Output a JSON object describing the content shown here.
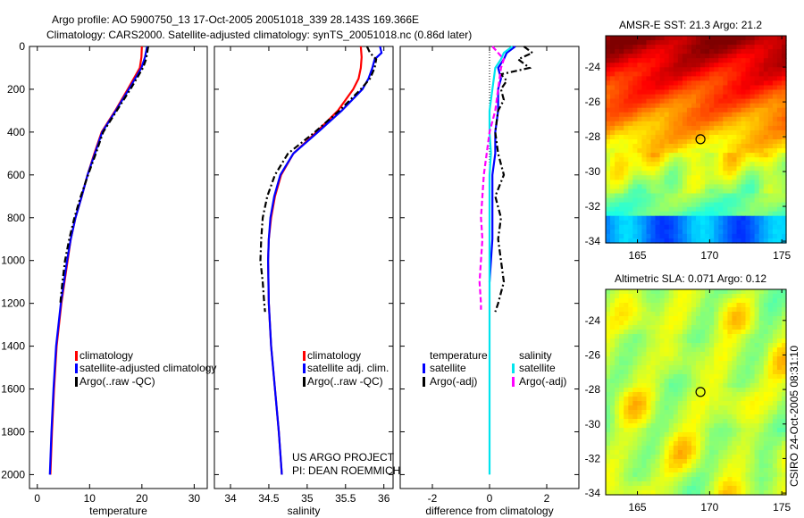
{
  "title_line1": "Argo profile: AO 5900750_13 17-Oct-2005 20051018_339 28.143S 169.366E",
  "title_line2": "Climatology: CARS2000. Satellite-adjusted climatology: synTS_20051018.nc (0.86d later)",
  "side_label": "CSIRO 24-Oct-2005 08:31:10",
  "credit_line1": "US ARGO PROJECT",
  "credit_line2": "PI: DEAN ROEMMICH",
  "colors": {
    "climatology": "#ff0000",
    "satellite": "#0000ff",
    "argo": "#000000",
    "sal_satellite": "#00e5ee",
    "sal_argo": "#ff00ff"
  },
  "chart_data": [
    {
      "type": "line",
      "xlabel": "temperature",
      "ylabel": "depth",
      "xlim": [
        -1.5,
        32.5
      ],
      "ylim": [
        2065,
        0
      ],
      "xticks": [
        0,
        10,
        20,
        30
      ],
      "yticks": [
        0,
        200,
        400,
        600,
        800,
        1000,
        1200,
        1400,
        1600,
        1800,
        2000
      ],
      "legend": [
        "climatology",
        "satellite-adjusted climatology",
        "Argo(..raw -QC)"
      ],
      "series": [
        {
          "name": "climatology",
          "style": "solid",
          "color": "#ff0000",
          "depth": [
            0,
            50,
            100,
            200,
            300,
            400,
            500,
            600,
            700,
            800,
            900,
            1000,
            1200,
            1400,
            1600,
            1800,
            2000
          ],
          "values": [
            20.0,
            19.9,
            19.6,
            17.3,
            14.9,
            12.3,
            10.9,
            9.6,
            8.5,
            7.3,
            6.4,
            5.8,
            4.6,
            3.7,
            3.2,
            2.8,
            2.5
          ]
        },
        {
          "name": "satellite-adjusted climatology",
          "style": "solid",
          "color": "#0000ff",
          "depth": [
            0,
            50,
            100,
            200,
            300,
            400,
            500,
            600,
            700,
            800,
            900,
            1000,
            1200,
            1400,
            1600,
            1800,
            2000
          ],
          "values": [
            21.0,
            20.6,
            19.9,
            17.5,
            15.0,
            12.4,
            11.0,
            9.6,
            8.5,
            7.3,
            6.4,
            5.7,
            4.5,
            3.6,
            3.1,
            2.7,
            2.4
          ]
        },
        {
          "name": "Argo(..raw -QC)",
          "style": "dashdot",
          "color": "#000000",
          "depth": [
            0,
            30,
            60,
            100,
            150,
            200,
            300,
            400,
            500,
            600,
            700,
            800,
            900,
            1000,
            1100,
            1200
          ],
          "values": [
            21.2,
            21.0,
            20.8,
            20.2,
            19.0,
            17.8,
            15.2,
            12.6,
            11.2,
            9.7,
            8.3,
            7.1,
            6.1,
            5.3,
            4.8,
            4.4
          ]
        }
      ]
    },
    {
      "type": "line",
      "xlabel": "salinity",
      "xlim": [
        33.79,
        36.12
      ],
      "ylim": [
        2065,
        0
      ],
      "xticks": [
        34,
        34.5,
        35,
        35.5,
        36
      ],
      "legend": [
        "climatology",
        "satellite adj. clim.",
        "Argo(..raw -QC)"
      ],
      "series": [
        {
          "name": "climatology",
          "style": "solid",
          "color": "#ff0000",
          "depth": [
            0,
            50,
            100,
            150,
            200,
            300,
            400,
            500,
            600,
            700,
            800,
            900,
            1000,
            1200,
            1400,
            1600,
            1800,
            2000
          ],
          "values": [
            35.7,
            35.71,
            35.7,
            35.67,
            35.6,
            35.4,
            35.12,
            34.82,
            34.66,
            34.58,
            34.53,
            34.5,
            34.49,
            34.5,
            34.53,
            34.58,
            34.63,
            34.67
          ]
        },
        {
          "name": "satellite adj. clim.",
          "style": "solid",
          "color": "#0000ff",
          "depth": [
            0,
            30,
            60,
            100,
            150,
            200,
            300,
            400,
            500,
            600,
            700,
            800,
            900,
            1000,
            1200,
            1400,
            1600,
            1800,
            2000
          ],
          "values": [
            35.95,
            35.97,
            35.88,
            35.85,
            35.8,
            35.72,
            35.45,
            35.14,
            34.82,
            34.65,
            34.57,
            34.52,
            34.5,
            34.49,
            34.5,
            34.53,
            34.58,
            34.63,
            34.67
          ]
        },
        {
          "name": "Argo(..raw -QC)",
          "style": "dashdot",
          "color": "#000000",
          "depth": [
            0,
            30,
            60,
            100,
            150,
            200,
            300,
            400,
            500,
            600,
            700,
            800,
            900,
            1000,
            1100,
            1200,
            1240
          ],
          "values": [
            35.78,
            35.82,
            35.9,
            35.88,
            35.82,
            35.7,
            35.42,
            35.1,
            34.75,
            34.58,
            34.48,
            34.42,
            34.4,
            34.39,
            34.42,
            34.44,
            34.45
          ]
        }
      ]
    },
    {
      "type": "line",
      "xlabel": "difference from climatology",
      "xlim": [
        -3.125,
        3.125
      ],
      "ylim": [
        2065,
        0
      ],
      "xticks": [
        -2,
        0,
        2
      ],
      "legend_temperature_title": "temperature",
      "legend_salinity_title": "salinity",
      "legend": [
        "satellite",
        "Argo(-adj)",
        "satellite",
        "Argo(-adj)"
      ],
      "series": [
        {
          "name": "temperature satellite",
          "style": "solid",
          "color": "#0000ff",
          "depth": [
            0,
            30,
            60,
            100,
            150,
            200,
            300,
            400,
            500,
            600,
            700,
            800,
            900,
            1000,
            1100
          ],
          "values": [
            0.9,
            0.6,
            0.5,
            0.3,
            0.4,
            0.3,
            0.3,
            0.2,
            0.2,
            0.1,
            0.1,
            0.1,
            0.1,
            0.05,
            0.0
          ]
        },
        {
          "name": "temperature Argo(-adj)",
          "style": "dashdot",
          "color": "#000000",
          "depth": [
            0,
            30,
            60,
            100,
            130,
            160,
            200,
            250,
            300,
            400,
            500,
            600,
            700,
            800,
            900,
            1000,
            1100,
            1200,
            1240
          ],
          "values": [
            1.2,
            1.5,
            1.0,
            1.4,
            0.4,
            0.6,
            0.4,
            0.5,
            0.3,
            0.2,
            0.3,
            0.5,
            0.2,
            0.4,
            0.3,
            0.4,
            0.5,
            0.3,
            0.2
          ]
        },
        {
          "name": "salinity satellite",
          "style": "solid",
          "color": "#00e5ee",
          "depth": [
            0,
            30,
            60,
            100,
            200,
            300,
            400,
            500,
            600,
            700,
            800,
            1000,
            1200,
            1400,
            1600,
            1800,
            2000
          ],
          "values": [
            0.8,
            0.5,
            0.4,
            0.2,
            0.1,
            0.0,
            0.0,
            0.05,
            0.0,
            0.0,
            0.0,
            0.0,
            0.0,
            0.0,
            0.0,
            0.0,
            0.0
          ]
        },
        {
          "name": "salinity Argo(-adj)",
          "style": "dashed",
          "color": "#ff00ff",
          "depth": [
            0,
            30,
            60,
            100,
            200,
            300,
            400,
            500,
            600,
            700,
            800,
            900,
            1000,
            1100,
            1200,
            1230
          ],
          "values": [
            0.1,
            0.3,
            0.5,
            0.4,
            0.3,
            0.2,
            0.0,
            -0.1,
            -0.2,
            -0.25,
            -0.3,
            -0.25,
            -0.3,
            -0.35,
            -0.3,
            -0.3
          ]
        }
      ]
    },
    {
      "type": "heatmap",
      "title": "AMSR-E SST: 21.3 Argo: 21.2",
      "xlim": [
        162.8,
        175.3
      ],
      "ylim": [
        -34.1,
        -22.2
      ],
      "xticks": [
        165,
        170,
        175
      ],
      "yticks": [
        -24,
        -26,
        -28,
        -30,
        -32,
        -34
      ],
      "argo_position": {
        "lon": 169.366,
        "lat": -28.143
      }
    },
    {
      "type": "heatmap",
      "title": "Altimetric SLA: 0.071 Argo: 0.12",
      "xlim": [
        162.8,
        175.3
      ],
      "ylim": [
        -34.1,
        -22.2
      ],
      "xticks": [
        165,
        170,
        175
      ],
      "yticks": [
        -24,
        -26,
        -28,
        -30,
        -32,
        -34
      ],
      "argo_position": {
        "lon": 169.366,
        "lat": -28.143
      }
    }
  ]
}
